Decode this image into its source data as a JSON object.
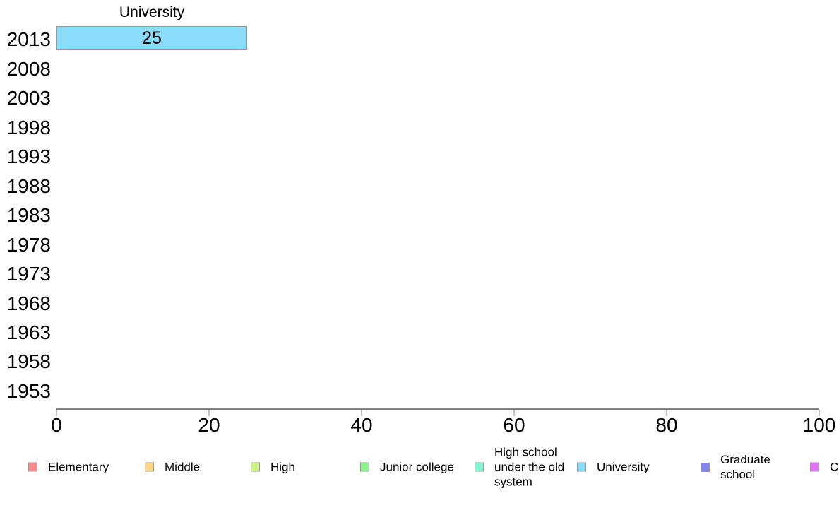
{
  "chart_data": {
    "type": "bar",
    "orientation": "horizontal",
    "column_header": "University",
    "years": [
      "2013",
      "2008",
      "2003",
      "1998",
      "1993",
      "1988",
      "1983",
      "1978",
      "1973",
      "1968",
      "1963",
      "1958",
      "1953"
    ],
    "x_ticks": [
      "0",
      "20",
      "40",
      "60",
      "80",
      "100"
    ],
    "xlim": [
      0,
      100
    ],
    "grid": "off",
    "axis_color": "#808080",
    "bars": [
      {
        "year": "2013",
        "series": "University",
        "value": 25,
        "label": "25",
        "color": "#8ADCFA"
      }
    ],
    "legend_position": "bottom",
    "legend": [
      {
        "label": "Elementary",
        "color": "#F98B8B"
      },
      {
        "label": "Middle",
        "color": "#FBD687"
      },
      {
        "label": "High",
        "color": "#CDF385"
      },
      {
        "label": "Junior college",
        "color": "#8BF291"
      },
      {
        "label": "High school under the old system",
        "color": "#85F3CF"
      },
      {
        "label": "University",
        "color": "#87DBF7"
      },
      {
        "label": "Graduate school",
        "color": "#8584F0"
      },
      {
        "label": "C",
        "color": "#DF72F5"
      }
    ]
  }
}
